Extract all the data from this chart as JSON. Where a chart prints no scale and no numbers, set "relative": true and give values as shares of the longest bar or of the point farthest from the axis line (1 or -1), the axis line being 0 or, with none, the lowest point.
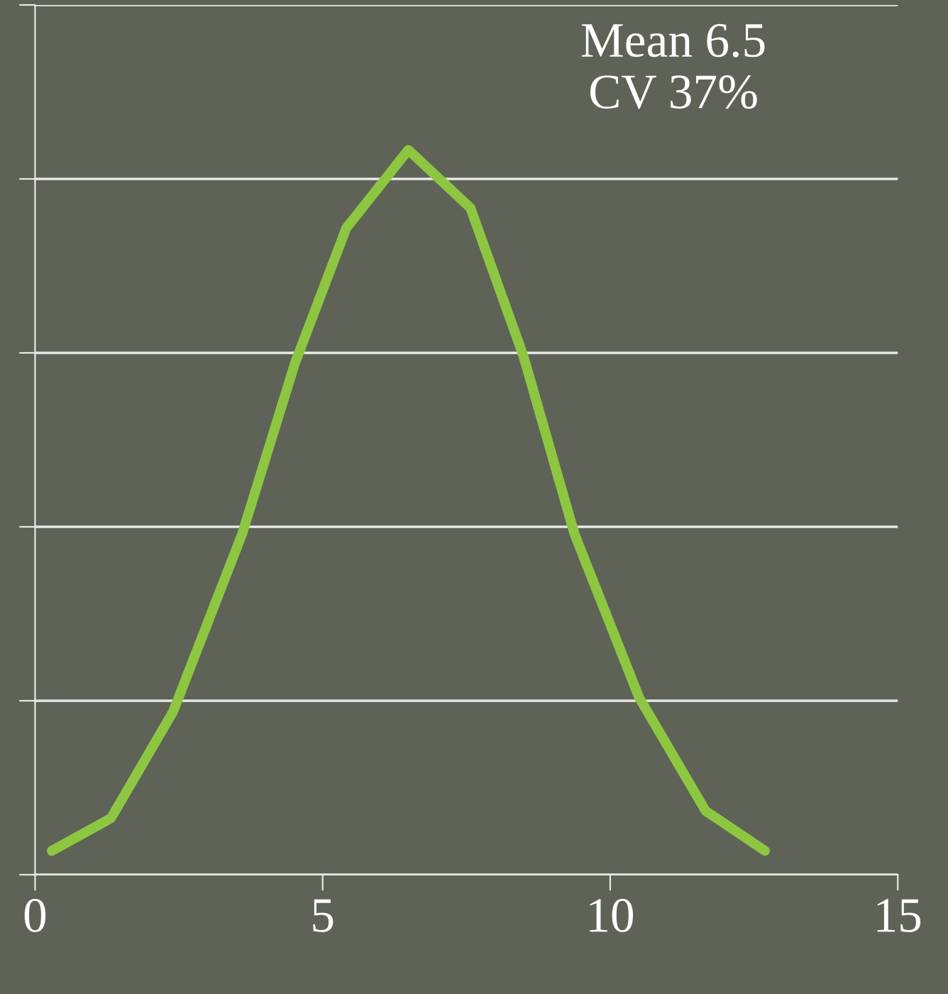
{
  "chart_data": {
    "type": "line",
    "relative": true,
    "x": [
      0.29,
      1.32,
      2.4,
      3.6,
      4.52,
      5.41,
      6.49,
      7.57,
      8.49,
      9.38,
      10.5,
      11.66,
      12.69
    ],
    "series": [
      {
        "color": "#8dc641",
        "values": [
          0.033,
          0.078,
          0.225,
          0.47,
          0.706,
          0.892,
          1.0,
          0.92,
          0.716,
          0.47,
          0.245,
          0.088,
          0.033
        ]
      }
    ],
    "xlim": [
      0,
      15
    ],
    "xticks": [
      0,
      5,
      10,
      15
    ],
    "grid": "y",
    "tick_labels": "x",
    "legend": false,
    "marker": "none",
    "line_style": "solid",
    "annotations": [
      "Mean 6.5\nCV 37%"
    ]
  }
}
